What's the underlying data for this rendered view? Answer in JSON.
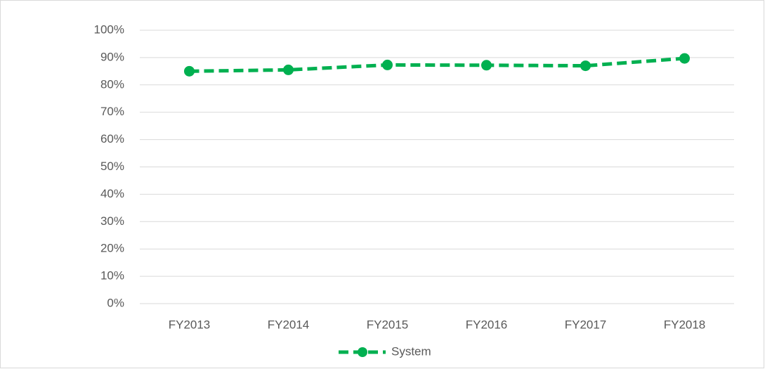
{
  "chart_data": {
    "type": "line",
    "categories": [
      "FY2013",
      "FY2014",
      "FY2015",
      "FY2016",
      "FY2017",
      "FY2018"
    ],
    "series": [
      {
        "name": "System",
        "color": "#00b050",
        "values": [
          85,
          85.5,
          87.3,
          87.2,
          87,
          89.7
        ]
      }
    ],
    "ylim": [
      0,
      100
    ],
    "yticks": [
      {
        "value": 0,
        "label": "0%"
      },
      {
        "value": 10,
        "label": "10%"
      },
      {
        "value": 20,
        "label": "20%"
      },
      {
        "value": 30,
        "label": "30%"
      },
      {
        "value": 40,
        "label": "40%"
      },
      {
        "value": 50,
        "label": "50%"
      },
      {
        "value": 60,
        "label": "60%"
      },
      {
        "value": 70,
        "label": "70%"
      },
      {
        "value": 80,
        "label": "80%"
      },
      {
        "value": 90,
        "label": "90%"
      },
      {
        "value": 100,
        "label": "100%"
      }
    ],
    "grid": true,
    "legend": "bottom"
  }
}
